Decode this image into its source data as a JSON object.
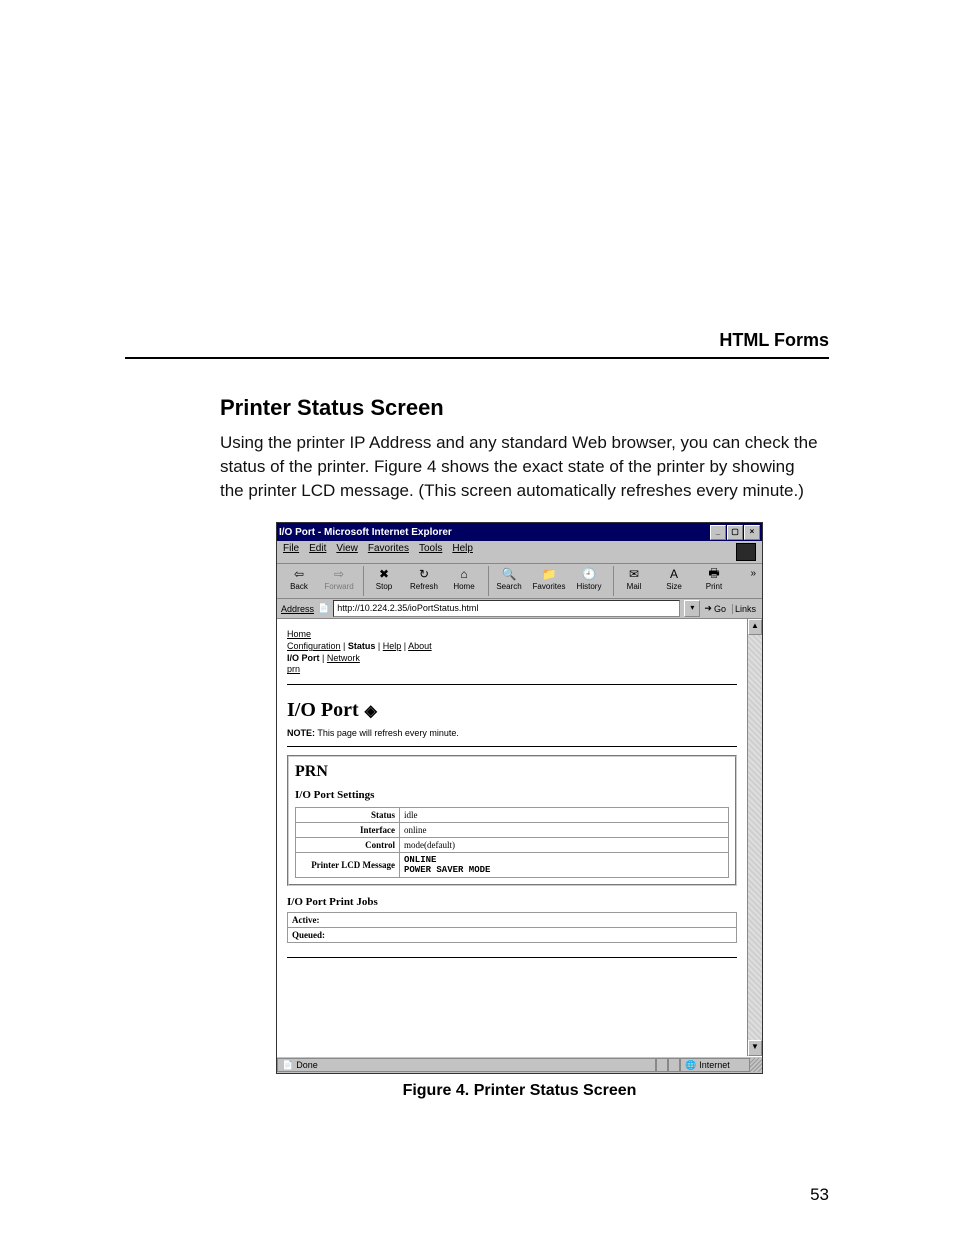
{
  "doc": {
    "chapter_header": "HTML Forms",
    "section_title": "Printer Status Screen",
    "body_text": "Using the printer IP Address and any standard Web browser, you can check the status of the printer. Figure 4 shows the exact state of the printer by showing the printer LCD message. (This screen automatically refreshes every minute.)",
    "figure_caption": "Figure 4. Printer Status Screen",
    "page_number": "53"
  },
  "window": {
    "title": "I/O Port - Microsoft Internet Explorer",
    "window_buttons": {
      "min": "_",
      "max": "▢",
      "close": "×"
    },
    "menubar": [
      "File",
      "Edit",
      "View",
      "Favorites",
      "Tools",
      "Help"
    ],
    "toolbar": [
      {
        "icon": "⇦",
        "label": "Back",
        "interactable": true,
        "disabled": false
      },
      {
        "icon": "⇨",
        "label": "Forward",
        "interactable": false,
        "disabled": true
      },
      {
        "sep": true
      },
      {
        "icon": "✖",
        "label": "Stop",
        "interactable": true,
        "disabled": false
      },
      {
        "icon": "↻",
        "label": "Refresh",
        "interactable": true,
        "disabled": false
      },
      {
        "icon": "⌂",
        "label": "Home",
        "interactable": true,
        "disabled": false
      },
      {
        "sep": true
      },
      {
        "icon": "🔍",
        "label": "Search",
        "interactable": true,
        "disabled": false
      },
      {
        "icon": "📁",
        "label": "Favorites",
        "interactable": true,
        "disabled": false
      },
      {
        "icon": "🕘",
        "label": "History",
        "interactable": true,
        "disabled": false
      },
      {
        "sep": true
      },
      {
        "icon": "✉",
        "label": "Mail",
        "interactable": true,
        "disabled": false
      },
      {
        "icon": "A",
        "label": "Size",
        "interactable": true,
        "disabled": false
      },
      {
        "icon": "🖶",
        "label": "Print",
        "interactable": true,
        "disabled": false
      }
    ],
    "more_chevron": "»",
    "address": {
      "label": "Address",
      "value": "http://10.224.2.35/ioPortStatus.html",
      "go_label": "Go",
      "links_label": "Links"
    },
    "page": {
      "nav": {
        "home": "Home",
        "line2_links": [
          "Configuration",
          "Status",
          "Help",
          "About"
        ],
        "line2_bold_index": 1,
        "line3": {
          "text_bold": "I/O Port",
          "link": "Network"
        },
        "line4_link": "prn"
      },
      "heading": "I/O Port",
      "note_label": "NOTE:",
      "note_text": "This page will refresh every minute.",
      "prn_title": "PRN",
      "settings_title": "I/O Port Settings",
      "settings_rows": [
        {
          "k": "Status",
          "v": "idle"
        },
        {
          "k": "Interface",
          "v": "online"
        },
        {
          "k": "Control",
          "v": "mode(default)"
        }
      ],
      "lcd_row_label": "Printer LCD Message",
      "lcd_message": "ONLINE\nPOWER SAVER MODE",
      "jobs_title": "I/O Port Print Jobs",
      "jobs_rows": [
        "Active:",
        "Queued:"
      ]
    },
    "statusbar": {
      "left": "Done",
      "left_icon": "📄",
      "right": "Internet",
      "right_icon": "🌐"
    }
  }
}
